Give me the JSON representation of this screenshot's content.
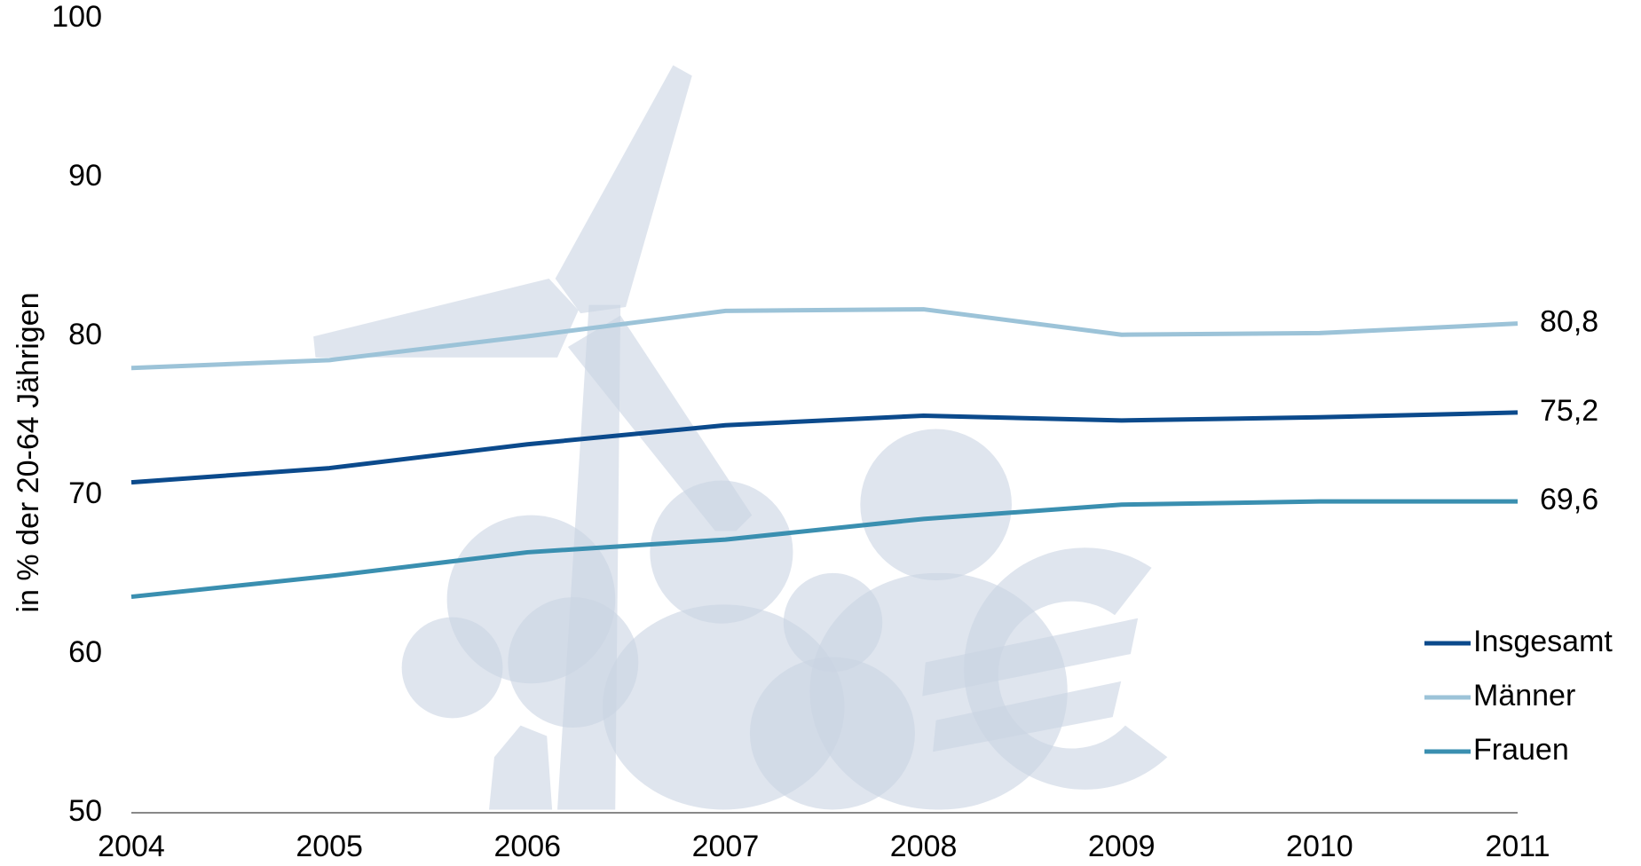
{
  "chart_data": {
    "type": "line",
    "y_label": "in % der  20-64 Jährigen",
    "categories": [
      "2004",
      "2005",
      "2006",
      "2007",
      "2008",
      "2009",
      "2010",
      "2011"
    ],
    "series": [
      {
        "name": "Insgesamt",
        "color": "#0b4a8c",
        "values": [
          70.8,
          71.7,
          73.2,
          74.4,
          75.0,
          74.7,
          74.9,
          75.2
        ],
        "value_labels": [
          null,
          null,
          null,
          null,
          null,
          null,
          null,
          "75,2"
        ]
      },
      {
        "name": "Männer",
        "color": "#9cc3d8",
        "values": [
          78.0,
          78.5,
          80.0,
          81.6,
          81.7,
          80.1,
          80.2,
          80.8
        ],
        "value_labels": [
          null,
          null,
          null,
          null,
          null,
          null,
          null,
          "80,8"
        ]
      },
      {
        "name": "Frauen",
        "color": "#3a8fb0",
        "values": [
          63.6,
          64.9,
          66.4,
          67.2,
          68.5,
          69.4,
          69.6,
          69.6
        ],
        "value_labels": [
          null,
          null,
          null,
          null,
          null,
          null,
          null,
          "69,6"
        ]
      }
    ],
    "ylim": [
      50,
      100
    ],
    "yticks": [
      50,
      60,
      70,
      80,
      90,
      100
    ],
    "grid": false,
    "legend": "bottom-right"
  }
}
